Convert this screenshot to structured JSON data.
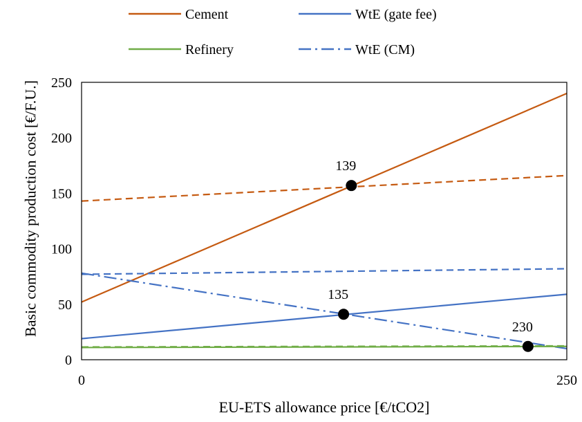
{
  "chart_data": {
    "type": "line",
    "xlabel": "EU-ETS allowance price [€/tCO2]",
    "ylabel": "Basic commodity production cost [€/F.U.]",
    "xlim": [
      0,
      250
    ],
    "ylim": [
      0,
      250
    ],
    "x_ticks": [
      "0",
      "250"
    ],
    "y_ticks": [
      "0",
      "50",
      "100",
      "150",
      "200",
      "250"
    ],
    "grid": false,
    "legend": {
      "placement": "top",
      "entries": [
        {
          "label": "Cement",
          "color": "#C55A11",
          "dash": "solid"
        },
        {
          "label": "WtE (gate fee)",
          "color": "#4472C4",
          "dash": "solid"
        },
        {
          "label": "Refinery",
          "color": "#70AD47",
          "dash": "solid"
        },
        {
          "label": "WtE (CM)",
          "color": "#4472C4",
          "dash": "dashdot"
        }
      ]
    },
    "series": [
      {
        "name": "Cement",
        "color": "#C55A11",
        "dash": "solid",
        "x": [
          0,
          250
        ],
        "y": [
          52,
          240
        ]
      },
      {
        "color": "#C55A11",
        "dash": "dashed",
        "x": [
          0,
          250
        ],
        "y": [
          143,
          166
        ]
      },
      {
        "name": "WtE (gate fee)",
        "color": "#4472C4",
        "dash": "solid",
        "x": [
          0,
          250
        ],
        "y": [
          19,
          59
        ]
      },
      {
        "color": "#4472C4",
        "dash": "dashed",
        "x": [
          0,
          250
        ],
        "y": [
          77,
          82
        ]
      },
      {
        "name": "WtE (CM)",
        "color": "#4472C4",
        "dash": "dashdot",
        "x": [
          0,
          250
        ],
        "y": [
          78,
          10
        ]
      },
      {
        "name": "Refinery",
        "color": "#70AD47",
        "dash": "solid",
        "x": [
          0,
          250
        ],
        "y": [
          11,
          12
        ]
      },
      {
        "color": "#70AD47",
        "dash": "dashed",
        "x": [
          0,
          250
        ],
        "y": [
          11.5,
          12.5
        ]
      }
    ],
    "markers": [
      {
        "x": 139,
        "y": 157,
        "label": "139"
      },
      {
        "x": 135,
        "y": 41,
        "label": "135"
      },
      {
        "x": 230,
        "y": 12,
        "label": "230"
      }
    ]
  }
}
